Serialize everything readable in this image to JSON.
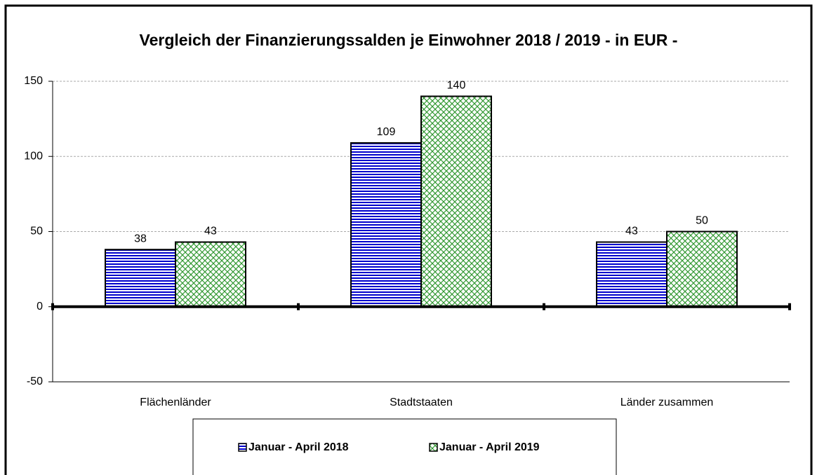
{
  "chart_data": {
    "type": "bar",
    "title": "Vergleich der Finanzierungssalden je Einwohner 2018 / 2019 - in EUR -",
    "categories": [
      "Flächenländer",
      "Stadtstaaten",
      "Länder zusammen"
    ],
    "series": [
      {
        "name": "Januar - April 2018",
        "color": "#0000cc",
        "values": [
          38,
          109,
          43
        ]
      },
      {
        "name": "Januar - April 2019",
        "color": "#339933",
        "values": [
          43,
          140,
          50
        ]
      }
    ],
    "ylim": [
      -50,
      150
    ],
    "yticks": [
      -50,
      0,
      50,
      100,
      150
    ],
    "grid": true,
    "legend": "bottom"
  }
}
